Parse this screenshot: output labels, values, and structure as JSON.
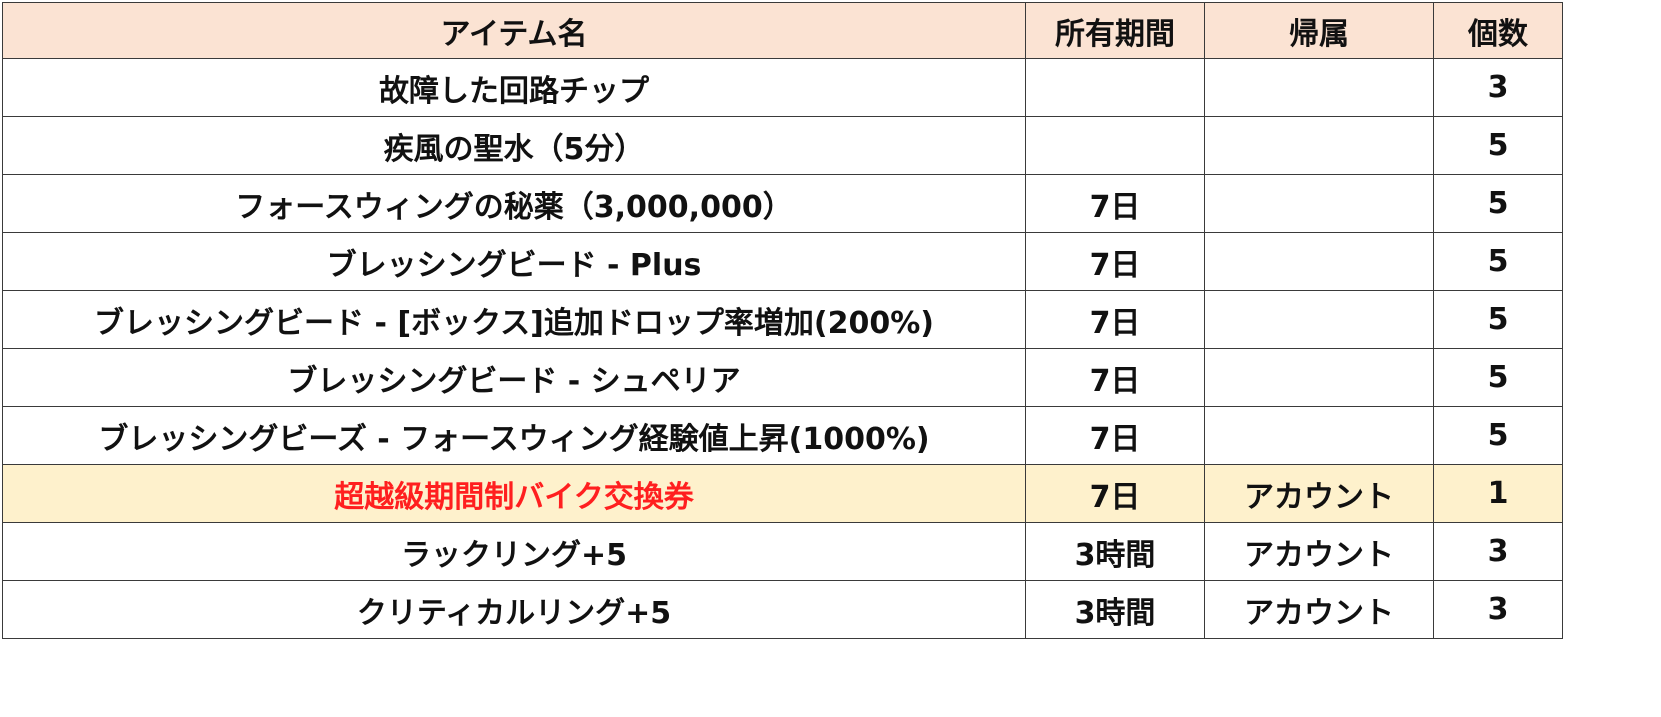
{
  "table": {
    "headers": {
      "name": "アイテム名",
      "period": "所有期間",
      "binding": "帰属",
      "quantity": "個数"
    },
    "rows": [
      {
        "name": "故障した回路チップ",
        "period": "",
        "binding": "",
        "quantity": "3"
      },
      {
        "name": "疾風の聖水（5分）",
        "period": "",
        "binding": "",
        "quantity": "5"
      },
      {
        "name": "フォースウィングの秘薬（3,000,000）",
        "period": "7日",
        "binding": "",
        "quantity": "5"
      },
      {
        "name": "ブレッシングビード - Plus",
        "period": "7日",
        "binding": "",
        "quantity": "5"
      },
      {
        "name": "ブレッシングビード - [ボックス]追加ドロップ率増加(200%)",
        "period": "7日",
        "binding": "",
        "quantity": "5"
      },
      {
        "name": "ブレッシングビード - シュペリア",
        "period": "7日",
        "binding": "",
        "quantity": "5"
      },
      {
        "name": "ブレッシングビーズ - フォースウィング経験値上昇(1000%)",
        "period": "7日",
        "binding": "",
        "quantity": "5"
      },
      {
        "name": "超越級期間制バイク交換券",
        "period": "7日",
        "binding": "アカウント",
        "quantity": "1",
        "highlighted": true
      },
      {
        "name": "ラックリング+5",
        "period": "3時間",
        "binding": "アカウント",
        "quantity": "3"
      },
      {
        "name": "クリティカルリング+5",
        "period": "3時間",
        "binding": "アカウント",
        "quantity": "3"
      }
    ]
  },
  "colors": {
    "header_background": "#fbe3d3",
    "highlight_background": "#fef1cc",
    "highlight_text": "#ff1f1f",
    "text": "#111111",
    "border": "#3a3a3a"
  }
}
